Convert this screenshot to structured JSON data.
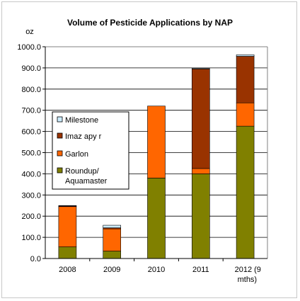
{
  "chart_data": {
    "type": "bar",
    "stacked": true,
    "title": "Volume of Pesticide Applications by NAP",
    "ylabel": "oz",
    "xlabel": "",
    "ylim": [
      0,
      1000
    ],
    "y_ticks": [
      "0.0",
      "100.0",
      "200.0",
      "300.0",
      "400.0",
      "500.0",
      "600.0",
      "700.0",
      "800.0",
      "900.0",
      "1000.0"
    ],
    "categories": [
      "2008",
      "2009",
      "2010",
      "2011",
      "2012 (9 mths)"
    ],
    "category_label_lines": [
      [
        "2008"
      ],
      [
        "2009"
      ],
      [
        "2010"
      ],
      [
        "2011"
      ],
      [
        "2012 (9",
        "mths)"
      ]
    ],
    "series": [
      {
        "name": "Roundup/ Aquamaster",
        "legend_lines": [
          "Roundup/",
          "Aquamaster"
        ],
        "color": "#808000",
        "values": [
          55,
          35,
          380,
          400,
          625
        ]
      },
      {
        "name": "Garlon",
        "legend_lines": [
          "Garlon"
        ],
        "color": "#ff6600",
        "values": [
          190,
          105,
          340,
          25,
          110
        ]
      },
      {
        "name": "Imazapyr",
        "legend_lines": [
          "Imaz apy r"
        ],
        "color": "#993300",
        "values": [
          3,
          5,
          0,
          470,
          220
        ]
      },
      {
        "name": "Milestone",
        "legend_lines": [
          "Milestone"
        ],
        "color": "#ccecff",
        "values": [
          2,
          12,
          0,
          3,
          7
        ]
      }
    ],
    "legend_order": [
      3,
      2,
      1,
      0
    ],
    "grid": "horizontal",
    "legend_position": "left"
  }
}
